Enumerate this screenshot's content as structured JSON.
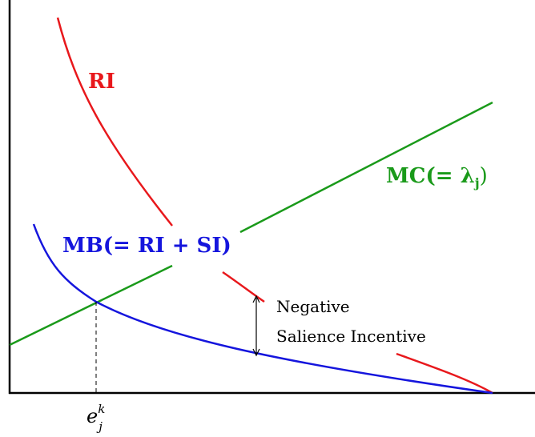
{
  "colors": {
    "ri": "#e8181c",
    "mc": "#1a9a1a",
    "mb": "#1515dd",
    "axis": "#000000",
    "annotation": "#000000"
  },
  "labels": {
    "ri": "RI",
    "mc_text": "MC(= λ",
    "mc_sub": "j",
    "mc_close": ")",
    "mb": "MB(= RI + SI)",
    "annotation_line1": "Negative",
    "annotation_line2": "Salience Incentive",
    "x_marker": "e",
    "x_marker_sup": "k",
    "x_marker_sub": "j"
  },
  "chart_data": {
    "type": "line",
    "series": [
      {
        "name": "RI",
        "shape": "convex decreasing"
      },
      {
        "name": "MC(= λj)",
        "shape": "linear increasing"
      },
      {
        "name": "MB(= RI + SI)",
        "shape": "convex decreasing"
      }
    ],
    "annotations": [
      "Negative Salience Incentive"
    ]
  }
}
